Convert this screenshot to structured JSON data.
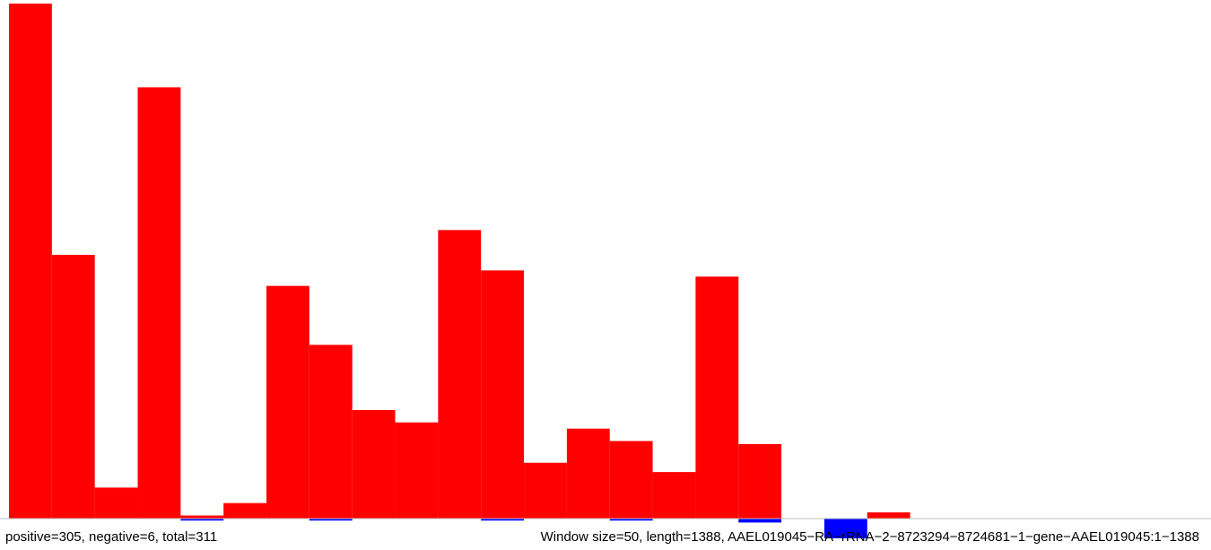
{
  "chart_data": {
    "type": "bar",
    "bin_width": 50,
    "sequence_length": 1388,
    "series": [
      {
        "name": "positive",
        "color": "#ff0000",
        "values": [
          166,
          85,
          10,
          139,
          1,
          5,
          75,
          56,
          35,
          31,
          93,
          80,
          18,
          29,
          25,
          15,
          78,
          24,
          0,
          0,
          2,
          0,
          0,
          0,
          0,
          0,
          0,
          0
        ]
      },
      {
        "name": "negative",
        "color": "#0000ff",
        "values": [
          0,
          0,
          0,
          0,
          1,
          0,
          0,
          1,
          0,
          0,
          0,
          1,
          0,
          0,
          1,
          0,
          0,
          2,
          0,
          10,
          0,
          0,
          0,
          0,
          0,
          0,
          0,
          0
        ]
      }
    ],
    "ylim": [
      0,
      166
    ],
    "grid": false,
    "legend": "none",
    "caption_left": "positive=305, negative=6, total=311",
    "caption_right": "Window size=50, length=1388, AAEL019045−RA−rRNA−2−8723294−8724681−1−gene−AAEL019045:1−1388"
  }
}
